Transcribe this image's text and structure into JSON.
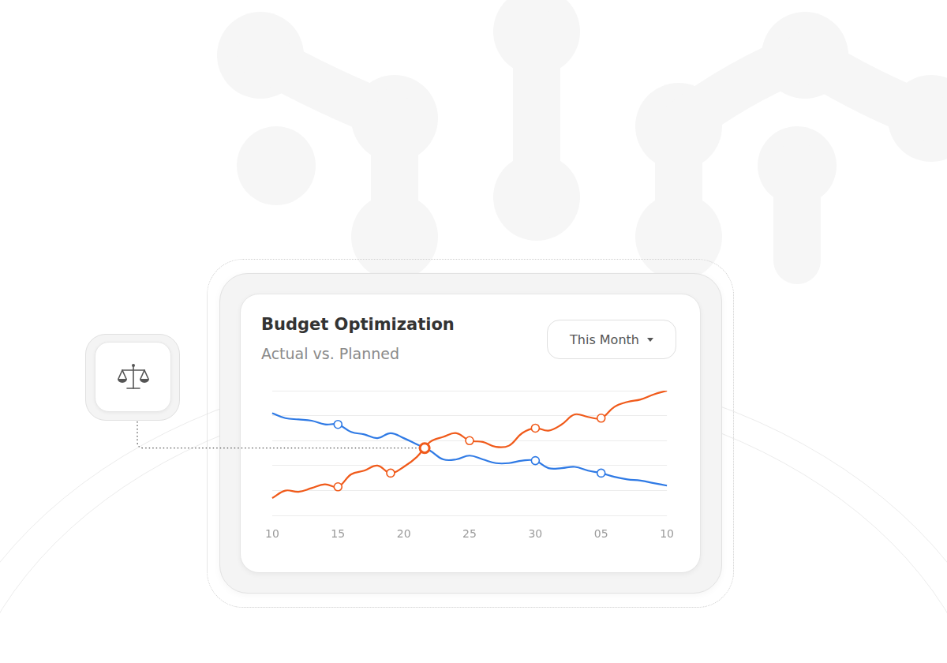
{
  "chart_data": {
    "type": "line",
    "title": "Budget Optimization",
    "subtitle": "Actual vs. Planned",
    "period": "This Month",
    "categories": [
      "10",
      null,
      null,
      null,
      null,
      "15",
      null,
      null,
      null,
      null,
      "20",
      null,
      null,
      null,
      null,
      "25",
      null,
      null,
      null,
      null,
      "30",
      null,
      null,
      null,
      null,
      "05",
      null,
      null,
      null,
      null,
      "10"
    ],
    "series": [
      {
        "color": "#2f7ae5",
        "values": [
          4.1,
          3.9,
          3.85,
          3.8,
          3.65,
          3.65,
          3.35,
          3.25,
          3.1,
          3.3,
          3.1,
          2.85,
          2.6,
          2.25,
          2.25,
          2.4,
          2.25,
          2.1,
          2.1,
          2.2,
          2.2,
          1.9,
          1.9,
          1.95,
          1.8,
          1.7,
          1.55,
          1.45,
          1.4,
          1.3,
          1.2
        ]
      },
      {
        "color": "#f05a1a",
        "values": [
          0.7,
          1.0,
          0.95,
          1.1,
          1.25,
          1.15,
          1.65,
          1.8,
          2.0,
          1.7,
          1.95,
          2.35,
          2.95,
          3.15,
          3.3,
          3.0,
          2.95,
          2.75,
          2.8,
          3.3,
          3.5,
          3.4,
          3.65,
          4.05,
          3.95,
          3.9,
          4.35,
          4.55,
          4.65,
          4.85,
          5.0
        ]
      }
    ],
    "ylim": [
      0,
      5
    ],
    "yticks": [
      0,
      1,
      2,
      3,
      4,
      5
    ],
    "grid": true,
    "tick_labels": "x"
  }
}
